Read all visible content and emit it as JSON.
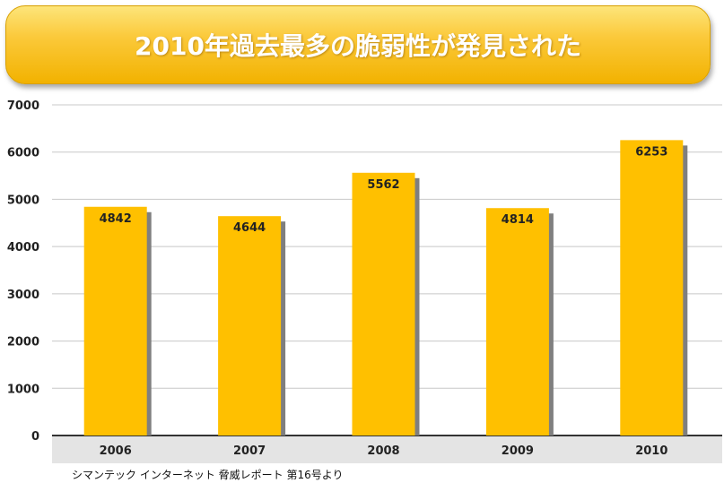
{
  "banner": {
    "title": "2010年過去最多の脆弱性が発見された"
  },
  "source": {
    "text": "シマンテック インターネット 脅威レポート 第16号より"
  },
  "colors": {
    "bar": "#ffc000",
    "bar_shadow": "#7f7f7f",
    "axis_band": "#e4e4e4",
    "gridline": "#c8c8c8"
  },
  "chart_data": {
    "type": "bar",
    "categories": [
      "2006",
      "2007",
      "2008",
      "2009",
      "2010"
    ],
    "values": [
      4842,
      4644,
      5562,
      4814,
      6253
    ],
    "ylim": [
      0,
      7000
    ],
    "yticks": [
      0,
      1000,
      2000,
      3000,
      4000,
      5000,
      6000,
      7000
    ],
    "grid": true,
    "data_labels": true
  }
}
